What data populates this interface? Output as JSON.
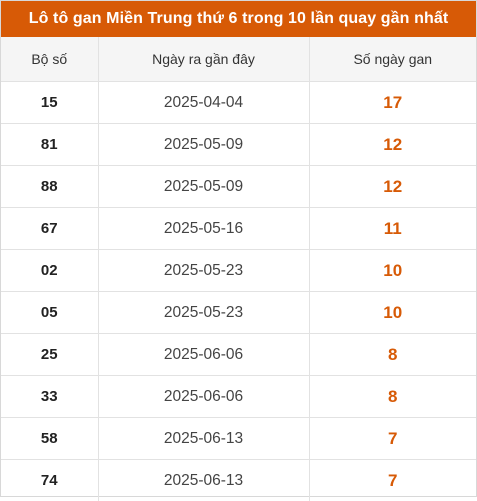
{
  "title": "Lô tô gan Miền Trung thứ 6 trong 10 lần quay gần nhất",
  "headers": {
    "bo_so": "Bộ số",
    "ngay": "Ngày ra gần đây",
    "so_ngay_gan": "Số ngày gan"
  },
  "rows": [
    {
      "bo_so": "15",
      "ngay": "2025-04-04",
      "gan": "17"
    },
    {
      "bo_so": "81",
      "ngay": "2025-05-09",
      "gan": "12"
    },
    {
      "bo_so": "88",
      "ngay": "2025-05-09",
      "gan": "12"
    },
    {
      "bo_so": "67",
      "ngay": "2025-05-16",
      "gan": "11"
    },
    {
      "bo_so": "02",
      "ngay": "2025-05-23",
      "gan": "10"
    },
    {
      "bo_so": "05",
      "ngay": "2025-05-23",
      "gan": "10"
    },
    {
      "bo_so": "25",
      "ngay": "2025-06-06",
      "gan": "8"
    },
    {
      "bo_so": "33",
      "ngay": "2025-06-06",
      "gan": "8"
    },
    {
      "bo_so": "58",
      "ngay": "2025-06-13",
      "gan": "7"
    },
    {
      "bo_so": "74",
      "ngay": "2025-06-13",
      "gan": "7"
    }
  ],
  "colors": {
    "accent": "#d75a06",
    "header_bg": "#f5f5f5",
    "border": "#e2e2e2"
  }
}
